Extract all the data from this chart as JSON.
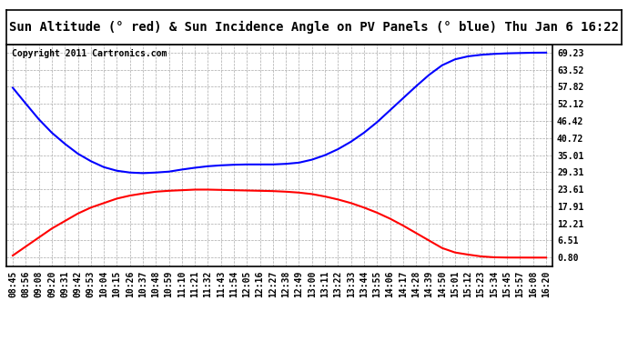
{
  "title": "Sun Altitude (° red) & Sun Incidence Angle on PV Panels (° blue) Thu Jan 6 16:22",
  "copyright_text": "Copyright 2011 Cartronics.com",
  "yticks": [
    0.8,
    6.51,
    12.21,
    17.91,
    23.61,
    29.31,
    35.01,
    40.72,
    46.42,
    52.12,
    57.82,
    63.52,
    69.23
  ],
  "ylim_min": -2,
  "ylim_max": 72,
  "xtick_labels": [
    "08:45",
    "08:56",
    "09:08",
    "09:20",
    "09:31",
    "09:42",
    "09:53",
    "10:04",
    "10:15",
    "10:26",
    "10:37",
    "10:48",
    "10:59",
    "11:10",
    "11:21",
    "11:32",
    "11:43",
    "11:54",
    "12:05",
    "12:16",
    "12:27",
    "12:38",
    "12:49",
    "13:00",
    "13:11",
    "13:22",
    "13:33",
    "13:44",
    "13:55",
    "14:06",
    "14:17",
    "14:28",
    "14:39",
    "14:50",
    "15:01",
    "15:12",
    "15:23",
    "15:34",
    "15:45",
    "15:57",
    "16:08",
    "16:20"
  ],
  "blue_line_color": "#0000FF",
  "red_line_color": "#FF0000",
  "grid_color": "#AAAAAA",
  "bg_color": "#FFFFFF",
  "title_fontsize": 10,
  "tick_fontsize": 7,
  "copyright_fontsize": 7,
  "blue_data": [
    57.5,
    52.2,
    47.0,
    42.5,
    38.8,
    35.5,
    33.0,
    31.0,
    29.8,
    29.2,
    29.0,
    29.2,
    29.5,
    30.2,
    30.8,
    31.3,
    31.6,
    31.8,
    31.9,
    31.9,
    31.9,
    32.1,
    32.5,
    33.5,
    35.0,
    37.0,
    39.5,
    42.5,
    46.0,
    50.0,
    54.0,
    58.0,
    61.8,
    65.0,
    67.0,
    68.0,
    68.5,
    68.8,
    69.0,
    69.1,
    69.2,
    69.23
  ],
  "red_data": [
    1.5,
    4.5,
    7.5,
    10.5,
    13.0,
    15.5,
    17.5,
    19.0,
    20.5,
    21.5,
    22.2,
    22.8,
    23.1,
    23.3,
    23.5,
    23.5,
    23.4,
    23.3,
    23.2,
    23.1,
    23.0,
    22.8,
    22.5,
    22.0,
    21.2,
    20.2,
    19.0,
    17.5,
    15.8,
    13.8,
    11.5,
    9.0,
    6.5,
    4.0,
    2.5,
    1.8,
    1.2,
    0.9,
    0.82,
    0.81,
    0.8,
    0.8
  ]
}
